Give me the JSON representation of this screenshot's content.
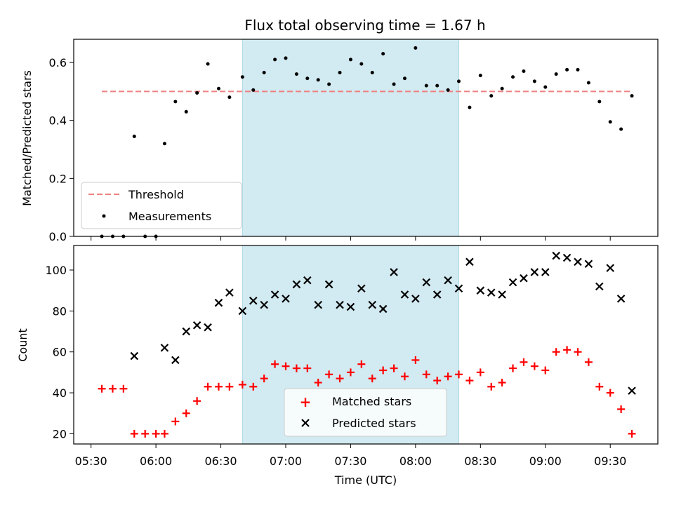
{
  "chart_data": [
    {
      "type": "scatter",
      "title": "Flux total observing time = 1.67 h",
      "ylabel": "Matched/Predicted stars",
      "ylim": [
        0,
        0.68
      ],
      "yticks": [
        "0.0",
        "0.2",
        "0.4",
        "0.6"
      ],
      "highlight_span": [
        "06:40",
        "08:20"
      ],
      "legend": {
        "placement": "lower-left",
        "entries": [
          "Threshold",
          "Measurements"
        ]
      },
      "series": [
        {
          "name": "Threshold",
          "kind": "dashed-line",
          "color": "#f08080",
          "x": [
            "05:35",
            "09:40"
          ],
          "y": [
            0.5,
            0.5
          ]
        },
        {
          "name": "Measurements",
          "kind": "dots",
          "color": "#000000",
          "x": [
            "05:35",
            "05:40",
            "05:45",
            "05:50",
            "05:55",
            "06:00",
            "06:04",
            "06:09",
            "06:14",
            "06:19",
            "06:24",
            "06:29",
            "06:34",
            "06:40",
            "06:45",
            "06:50",
            "06:55",
            "07:00",
            "07:05",
            "07:10",
            "07:15",
            "07:20",
            "07:25",
            "07:30",
            "07:35",
            "07:40",
            "07:45",
            "07:50",
            "07:55",
            "08:00",
            "08:05",
            "08:10",
            "08:15",
            "08:20",
            "08:25",
            "08:30",
            "08:35",
            "08:40",
            "08:45",
            "08:50",
            "08:55",
            "09:00",
            "09:05",
            "09:10",
            "09:15",
            "09:20",
            "09:25",
            "09:30",
            "09:35",
            "09:40"
          ],
          "y": [
            0.0,
            0.0,
            0.0,
            0.345,
            0.0,
            0.0,
            0.32,
            0.465,
            0.43,
            0.495,
            0.595,
            0.51,
            0.48,
            0.55,
            0.505,
            0.565,
            0.61,
            0.615,
            0.56,
            0.545,
            0.54,
            0.525,
            0.565,
            0.61,
            0.595,
            0.565,
            0.63,
            0.525,
            0.545,
            0.65,
            0.52,
            0.52,
            0.505,
            0.535,
            0.445,
            0.555,
            0.485,
            0.51,
            0.55,
            0.57,
            0.535,
            0.515,
            0.56,
            0.575,
            0.575,
            0.53,
            0.465,
            0.395,
            0.37,
            0.485
          ]
        }
      ]
    },
    {
      "type": "scatter",
      "xlabel": "Time (UTC)",
      "ylabel": "Count",
      "ylim": [
        15,
        112
      ],
      "yticks": [
        "20",
        "40",
        "60",
        "80",
        "100"
      ],
      "x_tick_labels": [
        "05:30",
        "06:00",
        "06:30",
        "07:00",
        "07:30",
        "08:00",
        "08:30",
        "09:00",
        "09:30"
      ],
      "highlight_span": [
        "06:40",
        "08:20"
      ],
      "legend": {
        "placement": "lower-center",
        "entries": [
          "Matched stars",
          "Predicted stars"
        ]
      },
      "series": [
        {
          "name": "Matched stars",
          "marker": "plus",
          "color": "#ff0000",
          "x": [
            "05:35",
            "05:40",
            "05:45",
            "05:50",
            "05:55",
            "06:00",
            "06:04",
            "06:09",
            "06:14",
            "06:19",
            "06:24",
            "06:29",
            "06:34",
            "06:40",
            "06:45",
            "06:50",
            "06:55",
            "07:00",
            "07:05",
            "07:10",
            "07:15",
            "07:20",
            "07:25",
            "07:30",
            "07:35",
            "07:40",
            "07:45",
            "07:50",
            "07:55",
            "08:00",
            "08:05",
            "08:10",
            "08:15",
            "08:20",
            "08:25",
            "08:30",
            "08:35",
            "08:40",
            "08:45",
            "08:50",
            "08:55",
            "09:00",
            "09:05",
            "09:10",
            "09:15",
            "09:20",
            "09:25",
            "09:30",
            "09:35",
            "09:40"
          ],
          "y": [
            42,
            42,
            42,
            20,
            20,
            20,
            20,
            26,
            30,
            36,
            43,
            43,
            43,
            44,
            43,
            47,
            54,
            53,
            52,
            52,
            45,
            49,
            47,
            50,
            54,
            47,
            51,
            52,
            48,
            56,
            49,
            46,
            48,
            49,
            46,
            50,
            43,
            45,
            52,
            55,
            53,
            51,
            60,
            61,
            60,
            55,
            43,
            40,
            32,
            20
          ]
        },
        {
          "name": "Predicted stars",
          "marker": "x",
          "color": "#000000",
          "x": [
            "05:50",
            "06:04",
            "06:09",
            "06:14",
            "06:19",
            "06:24",
            "06:29",
            "06:34",
            "06:40",
            "06:45",
            "06:50",
            "06:55",
            "07:00",
            "07:05",
            "07:10",
            "07:15",
            "07:20",
            "07:25",
            "07:30",
            "07:35",
            "07:40",
            "07:45",
            "07:50",
            "07:55",
            "08:00",
            "08:05",
            "08:10",
            "08:15",
            "08:20",
            "08:25",
            "08:30",
            "08:35",
            "08:40",
            "08:45",
            "08:50",
            "08:55",
            "09:00",
            "09:05",
            "09:10",
            "09:15",
            "09:20",
            "09:25",
            "09:30",
            "09:35",
            "09:40"
          ],
          "y": [
            58,
            62,
            56,
            70,
            73,
            72,
            84,
            89,
            80,
            85,
            83,
            88,
            86,
            93,
            95,
            83,
            93,
            83,
            82,
            91,
            83,
            81,
            99,
            88,
            86,
            94,
            88,
            95,
            91,
            104,
            90,
            89,
            88,
            94,
            96,
            99,
            99,
            107,
            106,
            104,
            103,
            92,
            101,
            86,
            41
          ]
        }
      ]
    }
  ],
  "colors": {
    "highlight": "#add8e6",
    "threshold": "#f08080",
    "matched": "#ff0000",
    "predicted": "#000000"
  }
}
